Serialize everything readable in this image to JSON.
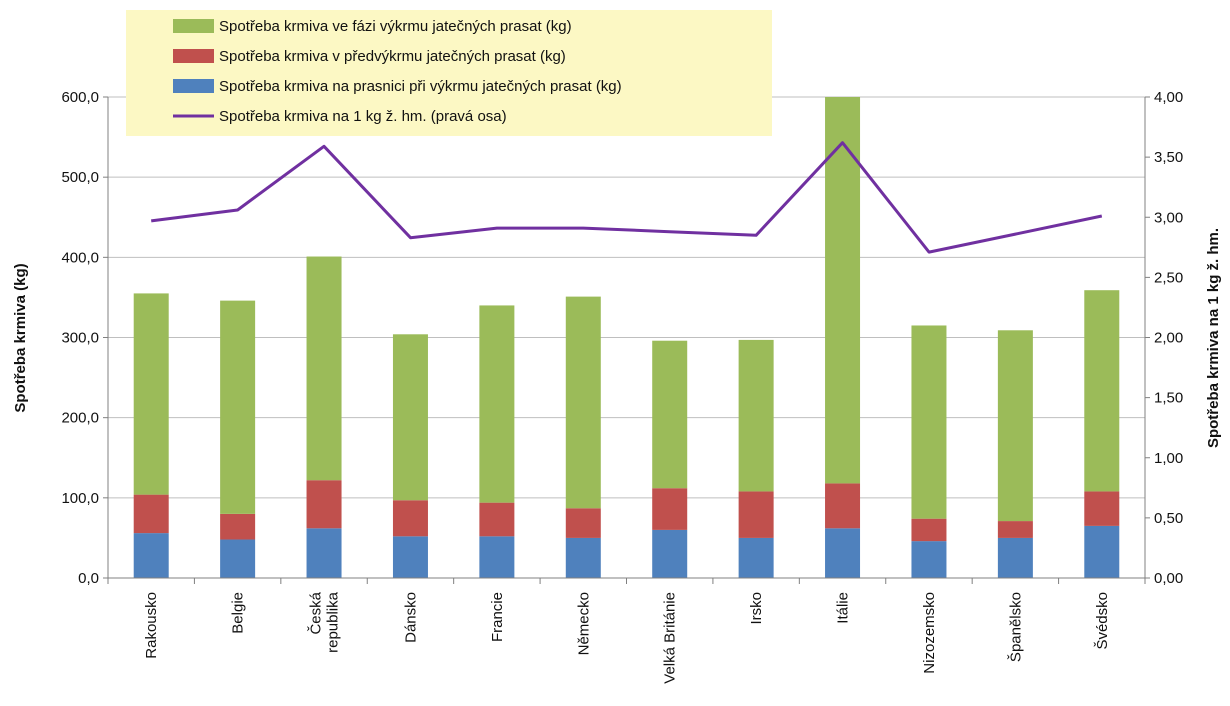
{
  "chart_data": {
    "type": "bar",
    "stacked": true,
    "categories": [
      [
        "Rakousko"
      ],
      [
        "Belgie"
      ],
      [
        "Česká",
        "republika"
      ],
      [
        "Dánsko"
      ],
      [
        "Francie"
      ],
      [
        "Německo"
      ],
      [
        "Velká Británie"
      ],
      [
        "Irsko"
      ],
      [
        "Itálie"
      ],
      [
        "Nizozemsko"
      ],
      [
        "Španělsko"
      ],
      [
        "Švédsko"
      ]
    ],
    "series": [
      {
        "name": "Spotřeba krmiva na prasnici při výkrmu jatečných prasat (kg)",
        "color": "#4f81bd",
        "axis": "left",
        "values": [
          56,
          48,
          62,
          52,
          52,
          50,
          60,
          50,
          62,
          46,
          50,
          65
        ]
      },
      {
        "name": "Spotřeba krmiva v předvýkrmu jatečných prasat (kg)",
        "color": "#c0504d",
        "axis": "left",
        "values": [
          48,
          32,
          60,
          45,
          42,
          37,
          52,
          58,
          56,
          28,
          21,
          43
        ]
      },
      {
        "name": "Spotřeba krmiva ve fázi výkrmu jatečných prasat (kg)",
        "color": "#9bbb59",
        "axis": "left",
        "values": [
          251,
          266,
          279,
          207,
          246,
          264,
          184,
          189,
          482,
          241,
          238,
          251
        ]
      },
      {
        "name": "Spotřeba krmiva na 1 kg ž. hm. (pravá osa)",
        "color": "#7030a0",
        "axis": "right",
        "type": "line",
        "values": [
          2.97,
          3.06,
          3.59,
          2.83,
          2.91,
          2.91,
          2.88,
          2.85,
          3.62,
          2.71,
          2.86,
          3.01
        ]
      }
    ],
    "ylabel": "Spotřeba krmiva (kg)",
    "y2label": "Spotřeba krmiva na 1 kg ž. hm.",
    "ylim": [
      0,
      600
    ],
    "y2lim": [
      0,
      4
    ],
    "yticks": [
      "0,0",
      "100,0",
      "200,0",
      "300,0",
      "400,0",
      "500,0",
      "600,0"
    ],
    "y2ticks": [
      "0,00",
      "0,50",
      "1,00",
      "1,50",
      "2,00",
      "2,50",
      "3,00",
      "3,50",
      "4,00"
    ],
    "legend": {
      "position": "top-left",
      "background": "#fcf8c4",
      "order": [
        2,
        1,
        0,
        3
      ]
    },
    "grid": true
  }
}
